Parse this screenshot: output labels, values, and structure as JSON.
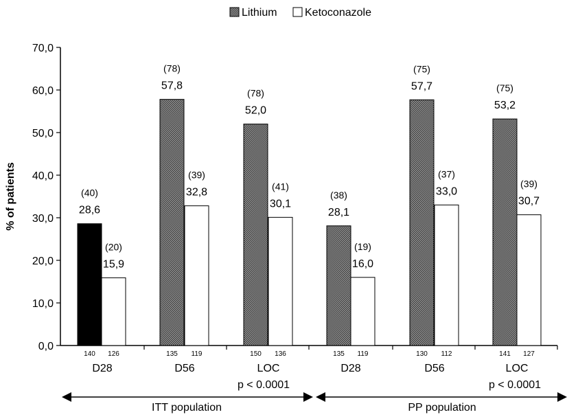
{
  "chart_data": {
    "type": "bar",
    "ylabel": "% of patients",
    "ylim": [
      0,
      70
    ],
    "y_ticks": [
      "0,0",
      "10,0",
      "20,0",
      "30,0",
      "40,0",
      "50,0",
      "60,0",
      "70,0"
    ],
    "categories": [
      "D28",
      "D56",
      "LOC",
      "D28",
      "D56",
      "LOC"
    ],
    "series": [
      {
        "name": "Lithium",
        "values": [
          28.6,
          57.8,
          52.0,
          28.1,
          57.7,
          53.2
        ],
        "value_labels": [
          "28,6",
          "57,8",
          "52,0",
          "28,1",
          "57,7",
          "53,2"
        ],
        "count_labels": [
          "(40)",
          "(78)",
          "(78)",
          "(38)",
          "(75)",
          "(75)"
        ],
        "n_labels": [
          "140",
          "135",
          "150",
          "135",
          "130",
          "141"
        ],
        "color": "#6e6e6e",
        "first_bar_color": "#000000"
      },
      {
        "name": "Ketoconazole",
        "values": [
          15.9,
          32.8,
          30.1,
          16.0,
          33.0,
          30.7
        ],
        "value_labels": [
          "15,9",
          "32,8",
          "30,1",
          "16,0",
          "33,0",
          "30,7"
        ],
        "count_labels": [
          "(20)",
          "(39)",
          "(41)",
          "(19)",
          "(37)",
          "(39)"
        ],
        "n_labels": [
          "126",
          "119",
          "136",
          "119",
          "112",
          "127"
        ],
        "color": "#ffffff"
      }
    ],
    "groups": [
      {
        "label": "ITT population",
        "pvalue": "p < 0.0001"
      },
      {
        "label": "PP population",
        "pvalue": "p < 0.0001"
      }
    ],
    "legend_position": "top-center",
    "grid": false
  }
}
